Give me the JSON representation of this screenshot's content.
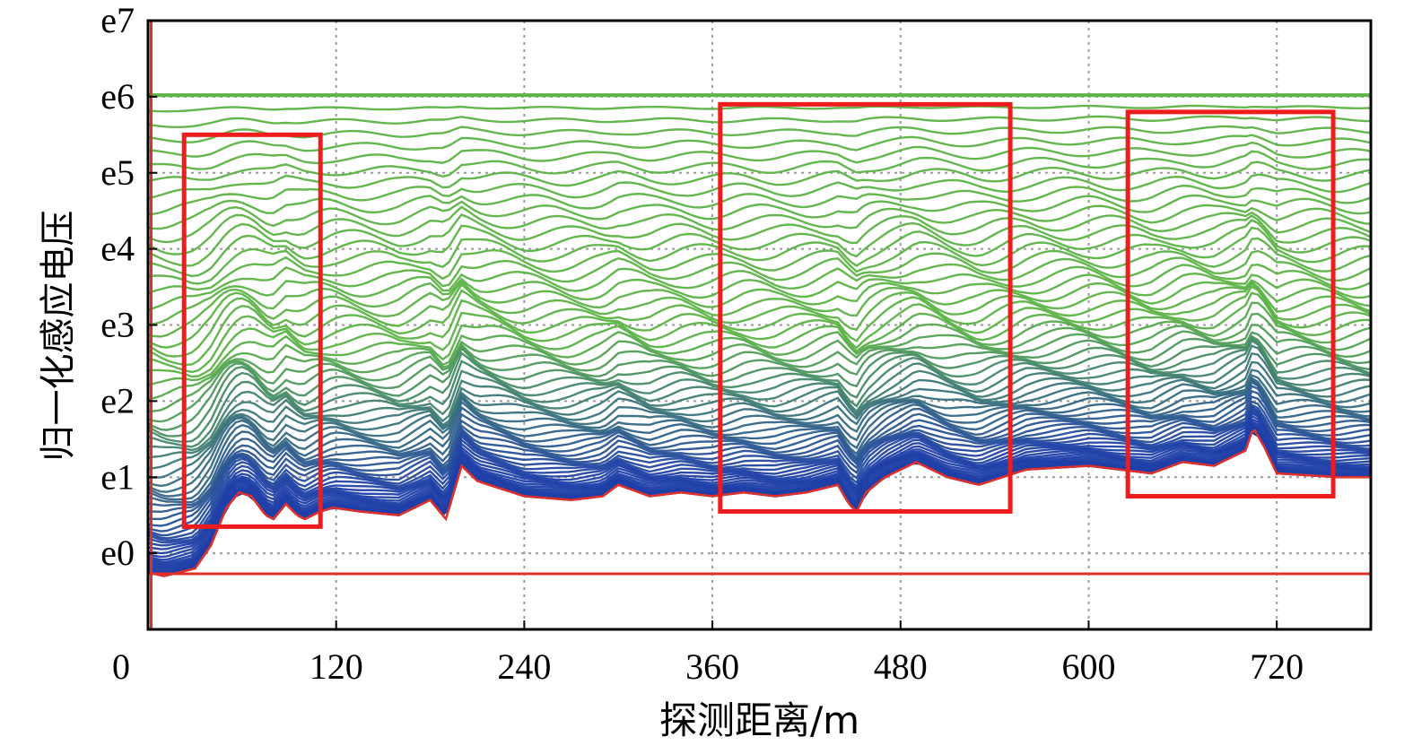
{
  "chart_data": {
    "type": "line",
    "xlabel": "探测距离/m",
    "ylabel": "归一化感应电压",
    "xlim": [
      0,
      780
    ],
    "ylim": [
      -1,
      7
    ],
    "x_ticks": [
      0,
      120,
      240,
      360,
      480,
      600,
      720
    ],
    "x_tick_labels": [
      "0",
      "120",
      "240",
      "360",
      "480",
      "600",
      "720"
    ],
    "y_ticks": [
      0,
      1,
      2,
      3,
      4,
      5,
      6,
      7
    ],
    "y_tick_labels": [
      "e0",
      "e1",
      "e2",
      "e3",
      "e4",
      "e5",
      "e6",
      "e7"
    ],
    "grid": true,
    "colors": {
      "upper": "#5cb346",
      "lower": "#1f3fa8",
      "baseline": "#e0302a",
      "highlight_box": "#ee1c1c"
    },
    "reference_line": {
      "y": -0.27,
      "x_range": [
        0,
        780
      ]
    },
    "top_curve": {
      "x": [
        0,
        780
      ],
      "y": [
        6.02,
        6.02
      ]
    },
    "bottom_curve": {
      "x": [
        0,
        10,
        20,
        30,
        40,
        50,
        58,
        66,
        75,
        80,
        88,
        95,
        100,
        110,
        118,
        135,
        160,
        180,
        190,
        195,
        200,
        210,
        240,
        270,
        290,
        300,
        320,
        340,
        360,
        380,
        400,
        420,
        440,
        447,
        452,
        458,
        470,
        490,
        510,
        530,
        560,
        600,
        640,
        660,
        680,
        700,
        705,
        712,
        720,
        760,
        780
      ],
      "y": [
        -0.25,
        -0.3,
        -0.25,
        -0.2,
        0.1,
        0.6,
        0.8,
        0.75,
        0.5,
        0.45,
        0.65,
        0.5,
        0.45,
        0.55,
        0.6,
        0.55,
        0.5,
        0.7,
        0.45,
        0.8,
        1.15,
        0.95,
        0.75,
        0.7,
        0.75,
        0.9,
        0.75,
        0.8,
        0.75,
        0.8,
        0.75,
        0.8,
        0.9,
        0.65,
        0.55,
        0.8,
        1.0,
        1.2,
        1.0,
        0.9,
        1.1,
        1.15,
        1.05,
        1.2,
        1.15,
        1.35,
        1.65,
        1.4,
        1.05,
        1.0,
        1.0
      ]
    },
    "curve_count": 70,
    "highlight_boxes": [
      {
        "x": [
          23,
          110
        ],
        "y": [
          0.35,
          5.5
        ]
      },
      {
        "x": [
          365,
          550
        ],
        "y": [
          0.55,
          5.9
        ]
      },
      {
        "x": [
          625,
          756
        ],
        "y": [
          0.75,
          5.8
        ]
      }
    ]
  }
}
